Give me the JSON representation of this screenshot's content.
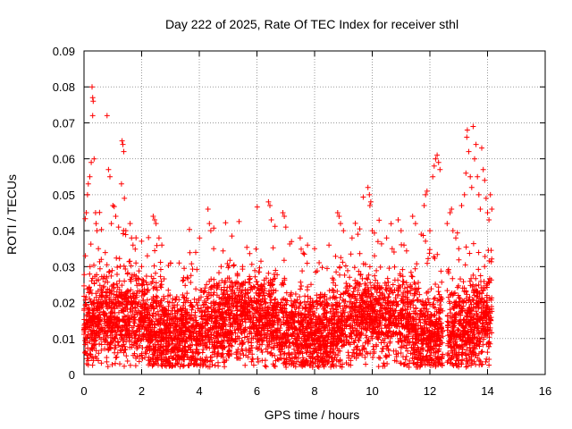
{
  "chart_data": {
    "type": "scatter",
    "title": "Day 222 of 2025, Rate Of TEC Index for receiver sthl",
    "xlabel": "GPS time / hours",
    "ylabel": "ROTI / TECUs",
    "xlim": [
      0,
      16
    ],
    "ylim": [
      0,
      0.09
    ],
    "x_ticks": [
      0,
      2,
      4,
      6,
      8,
      10,
      12,
      14,
      16
    ],
    "x_tick_labels": [
      "0",
      "2",
      "4",
      "6",
      "8",
      "10",
      "12",
      "14",
      "16"
    ],
    "y_ticks": [
      0,
      0.01,
      0.02,
      0.03,
      0.04,
      0.05,
      0.06,
      0.07,
      0.08,
      0.09
    ],
    "y_tick_labels": [
      "0",
      "0.01",
      "0.02",
      "0.03",
      "0.04",
      "0.05",
      "0.06",
      "0.07",
      "0.08",
      "0.09"
    ],
    "grid": true,
    "marker": "+",
    "series": [
      {
        "name": "ROTI",
        "color": "#ff0000",
        "points": [
          [
            0.05,
            0.033
          ],
          [
            0.08,
            0.045
          ],
          [
            0.12,
            0.05
          ],
          [
            0.15,
            0.053
          ],
          [
            0.2,
            0.055
          ],
          [
            0.25,
            0.059
          ],
          [
            0.28,
            0.08
          ],
          [
            0.3,
            0.077
          ],
          [
            0.32,
            0.076
          ],
          [
            0.3,
            0.072
          ],
          [
            0.35,
            0.06
          ],
          [
            0.4,
            0.045
          ],
          [
            0.42,
            0.042
          ],
          [
            0.45,
            0.04
          ],
          [
            0.5,
            0.035
          ],
          [
            0.6,
            0.032
          ],
          [
            0.8,
            0.072
          ],
          [
            0.85,
            0.057
          ],
          [
            0.9,
            0.055
          ],
          [
            0.95,
            0.042
          ],
          [
            1.0,
            0.047
          ],
          [
            1.1,
            0.044
          ],
          [
            1.2,
            0.041
          ],
          [
            1.3,
            0.053
          ],
          [
            1.32,
            0.065
          ],
          [
            1.35,
            0.064
          ],
          [
            1.38,
            0.062
          ],
          [
            1.4,
            0.049
          ],
          [
            1.45,
            0.04
          ],
          [
            1.6,
            0.042
          ],
          [
            1.65,
            0.038
          ],
          [
            1.7,
            0.036
          ],
          [
            1.8,
            0.031
          ],
          [
            2.0,
            0.03
          ],
          [
            2.2,
            0.033
          ],
          [
            2.4,
            0.044
          ],
          [
            2.45,
            0.043
          ],
          [
            2.5,
            0.042
          ],
          [
            2.6,
            0.038
          ],
          [
            2.7,
            0.036
          ],
          [
            3.0,
            0.031
          ],
          [
            3.3,
            0.031
          ],
          [
            4.3,
            0.046
          ],
          [
            4.35,
            0.042
          ],
          [
            4.4,
            0.04
          ],
          [
            4.5,
            0.035
          ],
          [
            5.5,
            0.03
          ],
          [
            6.4,
            0.048
          ],
          [
            6.45,
            0.047
          ],
          [
            6.5,
            0.043
          ],
          [
            6.9,
            0.045
          ],
          [
            6.95,
            0.044
          ],
          [
            7.0,
            0.041
          ],
          [
            7.2,
            0.037
          ],
          [
            7.5,
            0.038
          ],
          [
            8.0,
            0.035
          ],
          [
            8.5,
            0.036
          ],
          [
            8.8,
            0.045
          ],
          [
            8.85,
            0.044
          ],
          [
            8.9,
            0.042
          ],
          [
            9.0,
            0.04
          ],
          [
            9.3,
            0.038
          ],
          [
            9.5,
            0.039
          ],
          [
            9.85,
            0.052
          ],
          [
            9.9,
            0.05
          ],
          [
            9.92,
            0.047
          ],
          [
            9.95,
            0.048
          ],
          [
            10.0,
            0.04
          ],
          [
            10.2,
            0.037
          ],
          [
            10.5,
            0.038
          ],
          [
            10.9,
            0.043
          ],
          [
            11.0,
            0.04
          ],
          [
            11.1,
            0.036
          ],
          [
            11.4,
            0.044
          ],
          [
            11.5,
            0.042
          ],
          [
            11.7,
            0.039
          ],
          [
            11.8,
            0.047
          ],
          [
            11.85,
            0.05
          ],
          [
            11.9,
            0.051
          ],
          [
            12.0,
            0.04
          ],
          [
            12.1,
            0.055
          ],
          [
            12.15,
            0.058
          ],
          [
            12.2,
            0.06
          ],
          [
            12.25,
            0.061
          ],
          [
            12.3,
            0.059
          ],
          [
            12.35,
            0.057
          ],
          [
            12.6,
            0.042
          ],
          [
            12.7,
            0.045
          ],
          [
            12.75,
            0.046
          ],
          [
            12.8,
            0.04
          ],
          [
            12.9,
            0.038
          ],
          [
            13.0,
            0.035
          ],
          [
            13.1,
            0.047
          ],
          [
            13.2,
            0.05
          ],
          [
            13.25,
            0.056
          ],
          [
            13.28,
            0.066
          ],
          [
            13.3,
            0.068
          ],
          [
            13.35,
            0.062
          ],
          [
            13.4,
            0.055
          ],
          [
            13.45,
            0.052
          ],
          [
            13.5,
            0.069
          ],
          [
            13.55,
            0.06
          ],
          [
            13.6,
            0.064
          ],
          [
            13.65,
            0.055
          ],
          [
            13.7,
            0.05
          ],
          [
            13.75,
            0.046
          ],
          [
            13.8,
            0.063
          ],
          [
            13.85,
            0.057
          ],
          [
            13.9,
            0.054
          ],
          [
            13.95,
            0.049
          ],
          [
            14.0,
            0.045
          ],
          [
            14.05,
            0.043
          ],
          [
            14.1,
            0.05
          ],
          [
            14.15,
            0.046
          ]
        ]
      }
    ]
  }
}
